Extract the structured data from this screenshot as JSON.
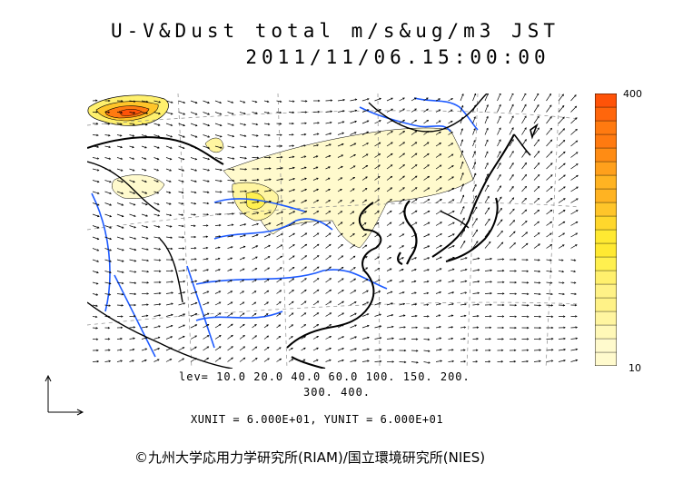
{
  "title": {
    "line1": "U-V&Dust total m/s&ug/m3 JST",
    "line2": "2011/11/06.15:00:00"
  },
  "colorbar": {
    "max_label": "400",
    "min_label": "10",
    "colors": [
      "#fffacd",
      "#fff8b8",
      "#fff5a0",
      "#fff287",
      "#fff06d",
      "#fff04f",
      "#ffe932",
      "#ffd72c",
      "#ffc52a",
      "#ffb322",
      "#ffa01c",
      "#ff8c14",
      "#ff7a10",
      "#ff660c",
      "#ff5308"
    ]
  },
  "levels": {
    "line1": "lev= 10.0 20.0 40.0 60.0 100. 150. 200.",
    "line2": "300. 400."
  },
  "units": "XUNIT = 6.000E+01, YUNIT = 6.000E+01",
  "credit": "©九州大学応用力学研究所(RIAM)/国立環境研究所(NIES)",
  "colors": {
    "coast": "#000000",
    "river": "#1e5bff",
    "dust_light": "#fffacd",
    "dust_core": "#ff5a1f"
  },
  "icons": [
    "axis-arrows-icon"
  ]
}
